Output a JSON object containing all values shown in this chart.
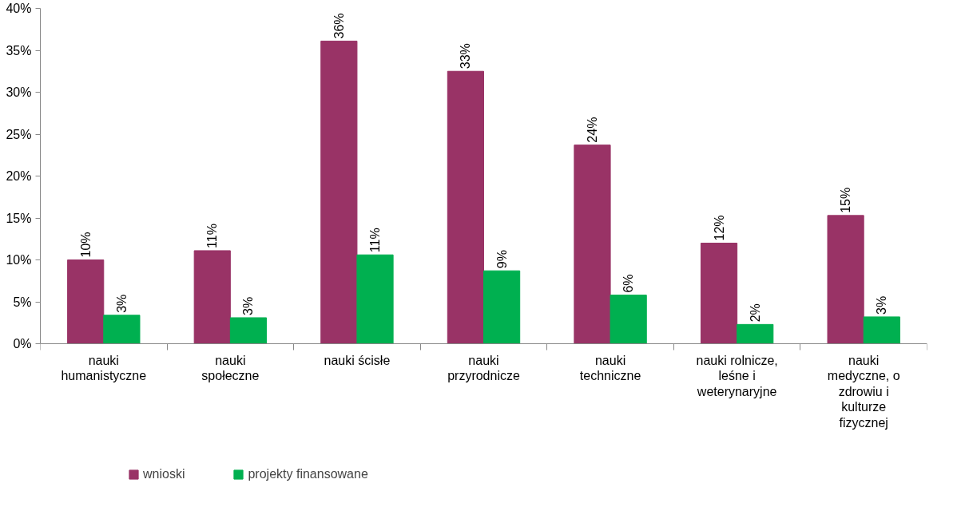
{
  "chart_data": {
    "type": "bar",
    "categories": [
      "nauki\nhumanistyczne",
      "nauki\nspołeczne",
      "nauki ścisłe",
      "nauki\nprzyrodnicze",
      "nauki\ntechniczne",
      "nauki rolnicze,\nleśne i\nweterynaryjne",
      "nauki\nmedyczne, o\nzdrowiu i\nkulturze\nfizycznej"
    ],
    "series": [
      {
        "name": "wnioski",
        "color": "#993366",
        "values": [
          10.0,
          11.1,
          36.1,
          32.5,
          23.7,
          12.0,
          15.3
        ],
        "value_labels": [
          "10%",
          "11%",
          "36%",
          "33%",
          "24%",
          "12%",
          "15%"
        ]
      },
      {
        "name": "projekty finansowane",
        "color": "#00b050",
        "values": [
          3.4,
          3.1,
          10.6,
          8.7,
          5.8,
          2.3,
          3.2
        ],
        "value_labels": [
          "3%",
          "3%",
          "11%",
          "9%",
          "6%",
          "2%",
          "3%"
        ]
      }
    ],
    "ylim": [
      0,
      40
    ],
    "yticks": [
      {
        "value": 0,
        "label": "0%"
      },
      {
        "value": 5,
        "label": "5%"
      },
      {
        "value": 10,
        "label": "10%"
      },
      {
        "value": 15,
        "label": "15%"
      },
      {
        "value": 20,
        "label": "20%"
      },
      {
        "value": 25,
        "label": "25%"
      },
      {
        "value": 30,
        "label": "30%"
      },
      {
        "value": 35,
        "label": "35%"
      },
      {
        "value": 40,
        "label": "40%"
      }
    ],
    "grid": false,
    "legend": "bottom"
  }
}
